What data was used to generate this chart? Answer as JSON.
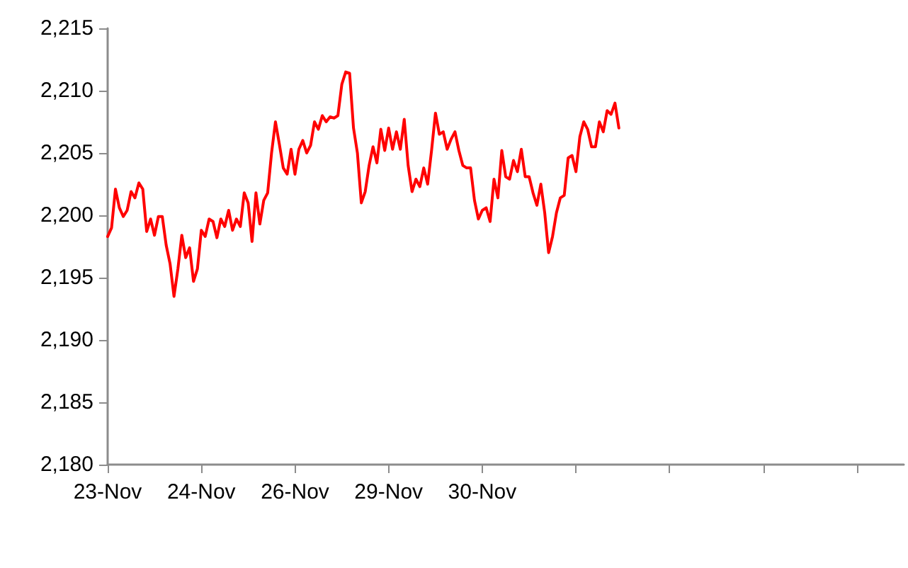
{
  "chart_data": {
    "type": "line",
    "color": "#ff0000",
    "marker": "none",
    "line_style": "solid",
    "grid": false,
    "categories": [
      "23-Nov",
      null,
      null,
      null,
      null,
      null,
      null,
      null,
      null,
      null,
      null,
      null,
      null,
      null,
      null,
      null,
      null,
      null,
      null,
      null,
      null,
      null,
      null,
      null,
      "24-Nov",
      null,
      null,
      null,
      null,
      null,
      null,
      null,
      null,
      null,
      null,
      null,
      null,
      null,
      null,
      null,
      null,
      null,
      null,
      null,
      null,
      null,
      null,
      null,
      "26-Nov",
      null,
      null,
      null,
      null,
      null,
      null,
      null,
      null,
      null,
      null,
      null,
      null,
      null,
      null,
      null,
      null,
      null,
      null,
      null,
      null,
      null,
      null,
      null,
      "29-Nov",
      null,
      null,
      null,
      null,
      null,
      null,
      null,
      null,
      null,
      null,
      null,
      null,
      null,
      null,
      null,
      null,
      null,
      null,
      null,
      null,
      null,
      null,
      null,
      "30-Nov",
      null,
      null,
      null,
      null,
      null,
      null,
      null,
      null,
      null,
      null,
      null,
      null,
      null,
      null,
      null,
      null,
      null,
      null,
      null,
      null,
      null,
      null,
      null,
      null,
      null,
      null,
      null,
      null,
      null,
      null,
      null,
      null,
      null,
      null,
      null,
      null,
      null,
      null,
      null,
      null,
      null,
      null,
      null,
      null,
      null,
      null,
      null,
      null,
      null,
      null,
      null,
      null,
      null,
      null,
      null,
      null,
      null,
      null,
      null,
      null,
      null,
      null,
      null,
      null,
      null,
      null,
      null,
      null,
      null,
      null,
      null,
      null,
      null,
      null,
      null,
      null,
      null,
      null,
      null,
      null,
      null,
      null,
      null,
      null,
      null,
      null,
      null,
      null,
      null,
      null,
      null,
      null,
      null,
      null,
      null,
      null,
      null,
      null,
      null,
      null,
      null,
      null,
      null,
      null,
      null,
      null,
      null,
      null
    ],
    "values": [
      2198.3,
      2199.0,
      2202.1,
      2200.6,
      2199.9,
      2200.4,
      2201.9,
      2201.4,
      2202.6,
      2202.1,
      2198.7,
      2199.7,
      2198.4,
      2199.9,
      2199.9,
      2197.6,
      2196.1,
      2193.5,
      2195.7,
      2198.4,
      2196.6,
      2197.4,
      2194.7,
      2195.7,
      2198.8,
      2198.3,
      2199.7,
      2199.5,
      2198.2,
      2199.7,
      2199.1,
      2200.4,
      2198.8,
      2199.7,
      2199.1,
      2201.8,
      2201.0,
      2197.9,
      2201.8,
      2199.3,
      2201.2,
      2201.8,
      2205.0,
      2207.5,
      2205.7,
      2203.8,
      2203.3,
      2205.3,
      2203.3,
      2205.3,
      2206.0,
      2205.0,
      2205.6,
      2207.5,
      2206.9,
      2208.0,
      2207.5,
      2207.9,
      2207.8,
      2208.0,
      2210.5,
      2211.5,
      2211.4,
      2207.0,
      2205.0,
      2201.0,
      2201.9,
      2204.0,
      2205.5,
      2204.2,
      2206.9,
      2205.2,
      2207.0,
      2205.3,
      2206.7,
      2205.3,
      2207.7,
      2204.0,
      2201.9,
      2202.9,
      2202.3,
      2203.8,
      2202.5,
      2205.2,
      2208.2,
      2206.5,
      2206.7,
      2205.3,
      2206.1,
      2206.7,
      2205.2,
      2204.0,
      2203.8,
      2203.8,
      2201.2,
      2199.7,
      2200.4,
      2200.6,
      2199.5,
      2202.9,
      2201.4,
      2205.2,
      2203.1,
      2202.9,
      2204.4,
      2203.5,
      2205.3,
      2203.1,
      2203.1,
      2201.8,
      2200.8,
      2202.5,
      2200.2,
      2197.0,
      2198.3,
      2200.2,
      2201.4,
      2201.6,
      2204.6,
      2204.8,
      2203.5,
      2206.3,
      2207.5,
      2206.9,
      2205.5,
      2205.5,
      2207.5,
      2206.7,
      2208.4,
      2208.1,
      2209.0,
      2207.0,
      null,
      null,
      null,
      null,
      null,
      null,
      null,
      null,
      null,
      null,
      null,
      null,
      null,
      null,
      null,
      null,
      null,
      null,
      null,
      null,
      null,
      null,
      null,
      null,
      null,
      null,
      null,
      null,
      null,
      null,
      null,
      null,
      null,
      null,
      null,
      null,
      null,
      null,
      null,
      null,
      null,
      null,
      null,
      null,
      null,
      null,
      null,
      null,
      null,
      null,
      null,
      null,
      null,
      null,
      null,
      null,
      null,
      null,
      null,
      null,
      null,
      null,
      null,
      null,
      null,
      null,
      null,
      null,
      null,
      null,
      null,
      null,
      null
    ],
    "ylim": [
      2180,
      2215
    ],
    "yticks": [
      {
        "value": 2180,
        "label": "2,180"
      },
      {
        "value": 2185,
        "label": "2,185"
      },
      {
        "value": 2190,
        "label": "2,190"
      },
      {
        "value": 2195,
        "label": "2,195"
      },
      {
        "value": 2200,
        "label": "2,200"
      },
      {
        "value": 2205,
        "label": "2,205"
      },
      {
        "value": 2210,
        "label": "2,210"
      },
      {
        "value": 2215,
        "label": "2,215"
      }
    ]
  }
}
